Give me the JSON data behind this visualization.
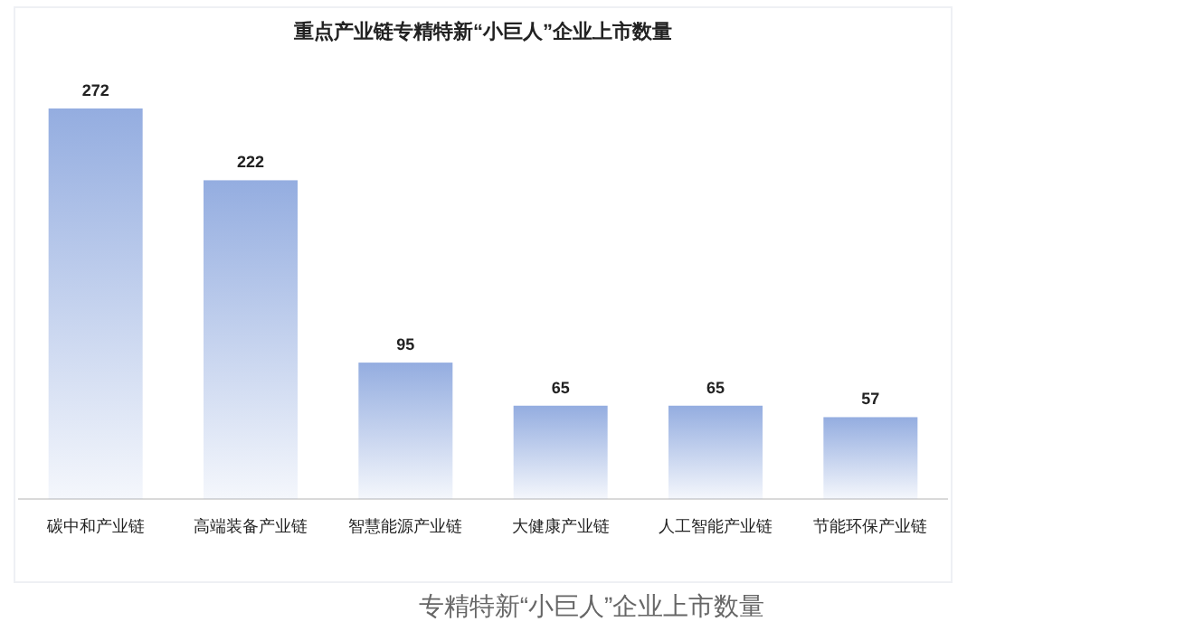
{
  "chart_data": {
    "type": "bar",
    "title": "重点产业链专精特新“小巨人”企业上市数量",
    "categories": [
      "碳中和产业链",
      "高端装备产业链",
      "智慧能源产业链",
      "大健康产业链",
      "人工智能产业链",
      "节能环保产业链"
    ],
    "values": [
      272,
      222,
      95,
      65,
      65,
      57
    ],
    "color": "#94ade0",
    "data_labels": true,
    "annotations": [
      "专精特新“小巨人”企业上市数量"
    ]
  }
}
